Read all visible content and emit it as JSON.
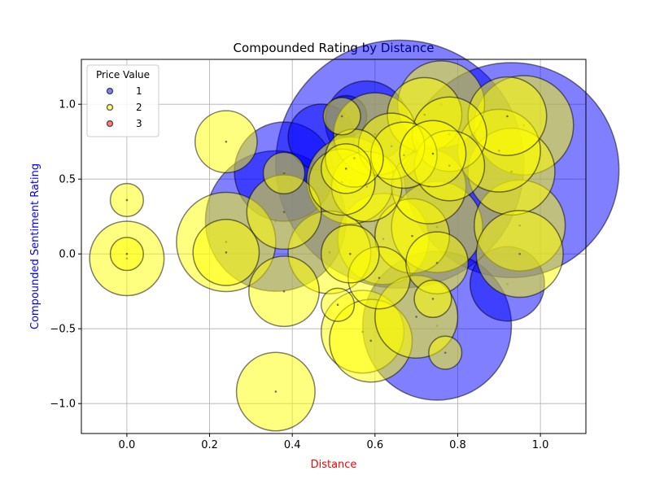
{
  "chart_data": {
    "type": "scatter",
    "title": "Compounded Rating by Distance",
    "xlabel": "Distance",
    "ylabel": "Compounded Sentiment Rating",
    "xlabel_color": "#ff0000",
    "ylabel_color": "#0000ff",
    "xlim": [
      -0.11,
      1.11
    ],
    "ylim": [
      -1.2,
      1.3
    ],
    "xticks": [
      0.0,
      0.2,
      0.4,
      0.6,
      0.8,
      1.0
    ],
    "xtick_labels": [
      "0.0",
      "0.2",
      "0.4",
      "0.6",
      "0.8",
      "1.0"
    ],
    "yticks": [
      -1.0,
      -0.5,
      0.0,
      0.5,
      1.0
    ],
    "ytick_labels": [
      "−1.0",
      "−0.5",
      "0.0",
      "0.5",
      "1.0"
    ],
    "grid": true,
    "legend": {
      "title": "Price Value",
      "placement": "upper-left",
      "entries": [
        "1",
        "2",
        "3"
      ]
    },
    "series": [
      {
        "name": "1",
        "color": "#0000ff",
        "points": [
          {
            "x": 0.38,
            "y": 0.55,
            "s": 0.12
          },
          {
            "x": 0.36,
            "y": 0.22,
            "s": 0.17
          },
          {
            "x": 0.53,
            "y": 0.92,
            "s": 0.05
          },
          {
            "x": 0.66,
            "y": 0.6,
            "s": 0.3
          },
          {
            "x": 0.75,
            "y": -0.48,
            "s": 0.18
          },
          {
            "x": 0.93,
            "y": 0.56,
            "s": 0.26
          },
          {
            "x": 0.92,
            "y": -0.2,
            "s": 0.09
          },
          {
            "x": 0.58,
            "y": 0.88,
            "s": 0.1
          },
          {
            "x": 0.47,
            "y": 0.78,
            "s": 0.08
          }
        ]
      },
      {
        "name": "2",
        "color": "#ffff00",
        "points": [
          {
            "x": 0.0,
            "y": 0.36,
            "s": 0.04
          },
          {
            "x": 0.0,
            "y": -0.03,
            "s": 0.09
          },
          {
            "x": 0.0,
            "y": 0.0,
            "s": 0.04
          },
          {
            "x": 0.24,
            "y": 0.75,
            "s": 0.075
          },
          {
            "x": 0.24,
            "y": 0.08,
            "s": 0.12
          },
          {
            "x": 0.24,
            "y": 0.01,
            "s": 0.08
          },
          {
            "x": 0.38,
            "y": 0.28,
            "s": 0.09
          },
          {
            "x": 0.38,
            "y": 0.54,
            "s": 0.05
          },
          {
            "x": 0.38,
            "y": -0.25,
            "s": 0.085
          },
          {
            "x": 0.36,
            "y": -0.92,
            "s": 0.095
          },
          {
            "x": 0.49,
            "y": 0.01,
            "s": 0.1
          },
          {
            "x": 0.52,
            "y": 0.92,
            "s": 0.045
          },
          {
            "x": 0.53,
            "y": 0.57,
            "s": 0.06
          },
          {
            "x": 0.54,
            "y": 0.0,
            "s": 0.07
          },
          {
            "x": 0.54,
            "y": 0.49,
            "s": 0.105
          },
          {
            "x": 0.58,
            "y": 0.45,
            "s": 0.085
          },
          {
            "x": 0.6,
            "y": 0.8,
            "s": 0.1
          },
          {
            "x": 0.57,
            "y": -0.52,
            "s": 0.1
          },
          {
            "x": 0.59,
            "y": -0.58,
            "s": 0.1
          },
          {
            "x": 0.61,
            "y": -0.16,
            "s": 0.075
          },
          {
            "x": 0.62,
            "y": 0.1,
            "s": 0.11
          },
          {
            "x": 0.64,
            "y": 0.72,
            "s": 0.08
          },
          {
            "x": 0.67,
            "y": 0.66,
            "s": 0.08
          },
          {
            "x": 0.69,
            "y": 0.12,
            "s": 0.09
          },
          {
            "x": 0.7,
            "y": -0.42,
            "s": 0.1
          },
          {
            "x": 0.72,
            "y": 0.93,
            "s": 0.09
          },
          {
            "x": 0.73,
            "y": 0.45,
            "s": 0.09
          },
          {
            "x": 0.74,
            "y": 0.67,
            "s": 0.08
          },
          {
            "x": 0.75,
            "y": 0.18,
            "s": 0.11
          },
          {
            "x": 0.75,
            "y": -0.06,
            "s": 0.075
          },
          {
            "x": 0.76,
            "y": 1.0,
            "s": 0.105
          },
          {
            "x": 0.78,
            "y": 0.8,
            "s": 0.09
          },
          {
            "x": 0.78,
            "y": 0.59,
            "s": 0.085
          },
          {
            "x": 0.74,
            "y": -0.3,
            "s": 0.045
          },
          {
            "x": 0.77,
            "y": -0.66,
            "s": 0.04
          },
          {
            "x": 0.9,
            "y": 0.69,
            "s": 0.1
          },
          {
            "x": 0.92,
            "y": 0.92,
            "s": 0.095
          },
          {
            "x": 0.93,
            "y": 0.55,
            "s": 0.105
          },
          {
            "x": 0.95,
            "y": 0.19,
            "s": 0.11
          },
          {
            "x": 0.95,
            "y": 0.0,
            "s": 0.105
          },
          {
            "x": 0.96,
            "y": 0.86,
            "s": 0.12
          },
          {
            "x": 0.51,
            "y": -0.34,
            "s": 0.04
          },
          {
            "x": 0.52,
            "y": 0.48,
            "s": 0.08
          },
          {
            "x": 0.55,
            "y": 0.64,
            "s": 0.07
          }
        ]
      },
      {
        "name": "3",
        "color": "#ff0000",
        "points": []
      }
    ]
  }
}
